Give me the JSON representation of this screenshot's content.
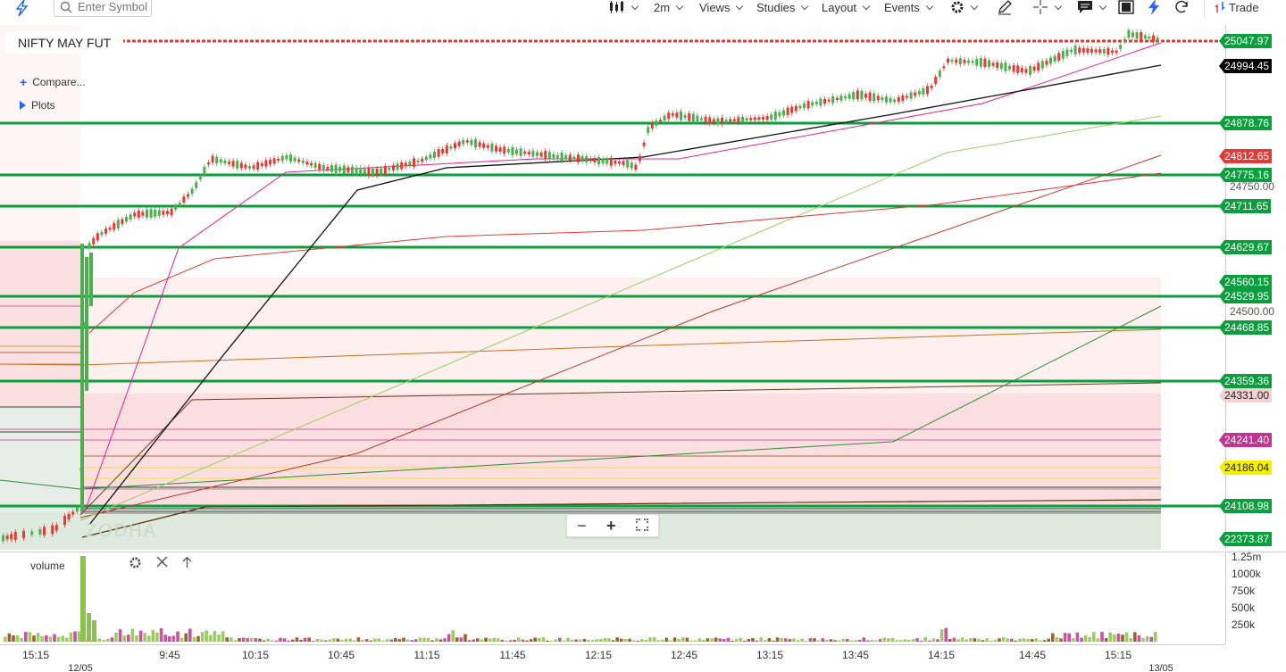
{
  "toolbar": {
    "search_placeholder": "Enter Symbol",
    "interval": "2m",
    "views": "Views",
    "studies": "Studies",
    "layout": "Layout",
    "events": "Events",
    "trade": "Trade"
  },
  "chart": {
    "symbol": "NIFTY MAY FUT",
    "compare_label": "Compare...",
    "plots_label": "Plots",
    "watermark": "ZODHA",
    "colors": {
      "up": "#4caf50",
      "down": "#e53935",
      "support_line": "#0a9e3c",
      "resistance_line": "#e53935"
    }
  },
  "price_axis": {
    "labels": [
      {
        "text": "25047.97",
        "bg": "#0a9e3c",
        "price": 25047.97
      },
      {
        "text": "24994.45",
        "bg": "#000000",
        "price": 24994.45
      },
      {
        "text": "24878.76",
        "bg": "#0a9e3c",
        "price": 24878.76
      },
      {
        "text": "24812.65",
        "bg": "#e53935",
        "price": 24812.65
      },
      {
        "text": "24775.16",
        "bg": "#0a9e3c",
        "price": 24775.16
      },
      {
        "text": "24711.65",
        "bg": "#0a9e3c",
        "price": 24711.65
      },
      {
        "text": "24629.67",
        "bg": "#0a9e3c",
        "price": 24629.67
      },
      {
        "text": "24560.15",
        "bg": "#0a9e3c",
        "price": 24560.15
      },
      {
        "text": "24529.95",
        "bg": "#0a9e3c",
        "price": 24529.95
      },
      {
        "text": "24468.85",
        "bg": "#0a9e3c",
        "price": 24468.85
      },
      {
        "text": "24359.36",
        "bg": "#0a9e3c",
        "price": 24359.36
      },
      {
        "text": "24331.00",
        "bg": "#f5d0d0",
        "price": 24331.0,
        "dark": true
      },
      {
        "text": "24241.40",
        "bg": "#c2348f",
        "price": 24241.4
      },
      {
        "text": "24186.04",
        "bg": "#f5f000",
        "price": 24186.04,
        "dark": true
      },
      {
        "text": "24108.98",
        "bg": "#0a9e3c",
        "price": 24108.98
      },
      {
        "text": "22373.87",
        "bg": "#0a9e3c",
        "price": 22373.87
      }
    ],
    "plain_ticks": [
      {
        "text": "24750.00",
        "price": 24750
      },
      {
        "text": "24500.00",
        "price": 24500
      }
    ]
  },
  "horizontal_levels": {
    "green": [
      24878.76,
      24775.16,
      24711.65,
      24629.67,
      24529.95,
      24468.85,
      24359.36,
      24108.98
    ],
    "red_dashed": 25047.97
  },
  "volume": {
    "title": "volume",
    "ticks": [
      "1.25m",
      "1000k",
      "750k",
      "500k",
      "250k"
    ]
  },
  "time_axis": {
    "ticks": [
      "15:15",
      "9:45",
      "10:15",
      "10:45",
      "11:15",
      "11:45",
      "12:15",
      "12:45",
      "13:15",
      "13:45",
      "14:15",
      "14:45",
      "15:15"
    ],
    "dates": [
      "12/05",
      "13/05"
    ]
  }
}
